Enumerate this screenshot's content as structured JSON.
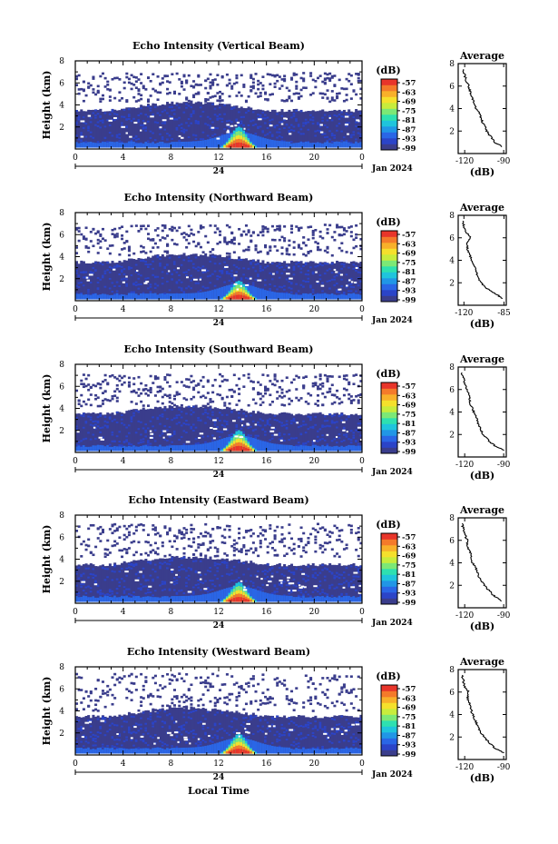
{
  "chart_data": {
    "type": "heatmap",
    "colors": [
      "#3a3d8c",
      "#2b44c8",
      "#2a66e6",
      "#2196e6",
      "#1fc4dc",
      "#2ee0b0",
      "#7ce876",
      "#c8ec3c",
      "#f5e02c",
      "#f8b02a",
      "#f47a2a",
      "#e8352a"
    ],
    "panels": [
      {
        "title": "Echo Intensity (Vertical Beam)",
        "top_range_km": [
          4.4,
          7.0
        ],
        "core_km": 1.9,
        "avg_title": "Average",
        "avg_xticks": [
          "-120",
          "-90"
        ],
        "avg_xlim": [
          -125,
          -88
        ],
        "avg_xlabel": "(dB)",
        "avg_profile": {
          "height_km": [
            0.6,
            1.0,
            1.5,
            2.0,
            2.5,
            3.0,
            3.5,
            4.0,
            4.5,
            5.0,
            5.5,
            6.0,
            6.5,
            7.0,
            7.5
          ],
          "db": [
            -91,
            -97,
            -100,
            -103,
            -105,
            -107,
            -108,
            -111,
            -113,
            -114,
            -116,
            -117,
            -119,
            -120,
            -121
          ]
        }
      },
      {
        "title": "Echo Intensity (Northward Beam)",
        "top_range_km": [
          4.2,
          7.0
        ],
        "core_km": 1.7,
        "avg_title": "Average",
        "avg_xticks": [
          "-120",
          "-85"
        ],
        "avg_xlim": [
          -125,
          -83
        ],
        "avg_xlabel": "(dB)",
        "avg_profile": {
          "height_km": [
            0.6,
            1.0,
            1.5,
            2.0,
            2.5,
            3.0,
            3.5,
            4.0,
            4.5,
            5.0,
            5.5,
            6.0,
            6.5,
            7.0,
            7.5
          ],
          "db": [
            -86,
            -92,
            -100,
            -105,
            -108,
            -109,
            -111,
            -113,
            -115,
            -117,
            -117,
            -114,
            -118,
            -120,
            -121
          ]
        }
      },
      {
        "title": "Echo Intensity (Southward Beam)",
        "top_range_km": [
          4.3,
          7.2
        ],
        "core_km": 1.9,
        "avg_title": "Average",
        "avg_xticks": [
          "-120",
          "-90"
        ],
        "avg_xlim": [
          -125,
          -88
        ],
        "avg_xlabel": "(dB)",
        "avg_profile": {
          "height_km": [
            0.6,
            1.0,
            1.5,
            2.0,
            2.5,
            3.0,
            3.5,
            4.0,
            4.5,
            5.0,
            5.5,
            6.0,
            6.5,
            7.0,
            7.5
          ],
          "db": [
            -90,
            -97,
            -102,
            -106,
            -108,
            -110,
            -111,
            -113,
            -115,
            -116,
            -117,
            -118,
            -120,
            -121,
            -122
          ]
        }
      },
      {
        "title": "Echo Intensity (Eastward Beam)",
        "top_range_km": [
          4.3,
          7.3
        ],
        "core_km": 1.8,
        "avg_title": "Average",
        "avg_xticks": [
          "-120",
          "-90"
        ],
        "avg_xlim": [
          -125,
          -88
        ],
        "avg_xlabel": "(dB)",
        "avg_profile": {
          "height_km": [
            0.6,
            1.0,
            1.5,
            2.0,
            2.5,
            3.0,
            3.5,
            4.0,
            4.5,
            5.0,
            5.5,
            6.0,
            6.5,
            7.0,
            7.5
          ],
          "db": [
            -91,
            -97,
            -101,
            -105,
            -108,
            -110,
            -111,
            -114,
            -115,
            -116,
            -118,
            -118,
            -120,
            -121,
            -122
          ]
        }
      },
      {
        "title": "Echo Intensity (Westward Beam)",
        "top_range_km": [
          4.1,
          7.5
        ],
        "core_km": 1.8,
        "avg_title": "Average",
        "avg_xticks": [
          "-120",
          "-90"
        ],
        "avg_xlim": [
          -125,
          -88
        ],
        "avg_xlabel": "(dB)",
        "avg_profile": {
          "height_km": [
            0.6,
            1.0,
            1.5,
            2.0,
            2.5,
            3.0,
            3.5,
            4.0,
            4.5,
            5.0,
            5.5,
            6.0,
            6.5,
            7.0,
            7.5
          ],
          "db": [
            -90,
            -97,
            -101,
            -105,
            -108,
            -110,
            -112,
            -114,
            -115,
            -116,
            -118,
            -117,
            -120,
            -121,
            -122
          ]
        }
      }
    ],
    "ylabel": "Height (km)",
    "yticks": [
      "2",
      "4",
      "6",
      "8"
    ],
    "ylim_km": [
      0,
      8
    ],
    "xticks": [
      "0",
      "4",
      "8",
      "12",
      "16",
      "20",
      "0"
    ],
    "xlim_hours": [
      0,
      24
    ],
    "date_day": "24",
    "date_label": "Jan 2024",
    "xlabel": "Local Time",
    "colorbar": {
      "unit": "(dB)",
      "ticks": [
        "-57",
        "-63",
        "-69",
        "-75",
        "-81",
        "-87",
        "-93",
        "-99"
      ]
    }
  }
}
